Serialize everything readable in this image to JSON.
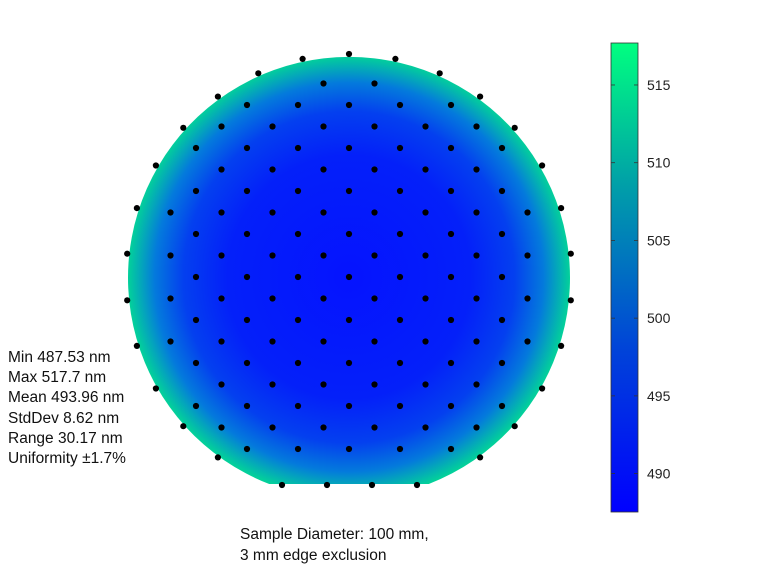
{
  "stats": {
    "min": "Min 487.53 nm",
    "max": "Max 517.7 nm",
    "mean": "Mean 493.96 nm",
    "stddev": "StdDev 8.62 nm",
    "range": "Range 30.17 nm",
    "uniformity": "Uniformity ±1.7%"
  },
  "caption": {
    "line1": "Sample Diameter: 100 mm,",
    "line2": "3 mm edge exclusion"
  },
  "chart_data": {
    "type": "heatmap",
    "description_units": "nm",
    "colorbar": {
      "range": [
        487.53,
        517.7
      ],
      "ticks": [
        490,
        495,
        500,
        505,
        510,
        515
      ],
      "colors": [
        "#0000ff",
        "#00ff80"
      ]
    },
    "sample_diameter_mm": 100,
    "edge_exclusion_mm": 3,
    "flat": "bottom",
    "summary": {
      "min": 487.53,
      "max": 517.7,
      "mean": 493.96,
      "stddev": 8.62,
      "range": 30.17,
      "uniformity_pct": 1.7
    },
    "grid_on": false
  }
}
